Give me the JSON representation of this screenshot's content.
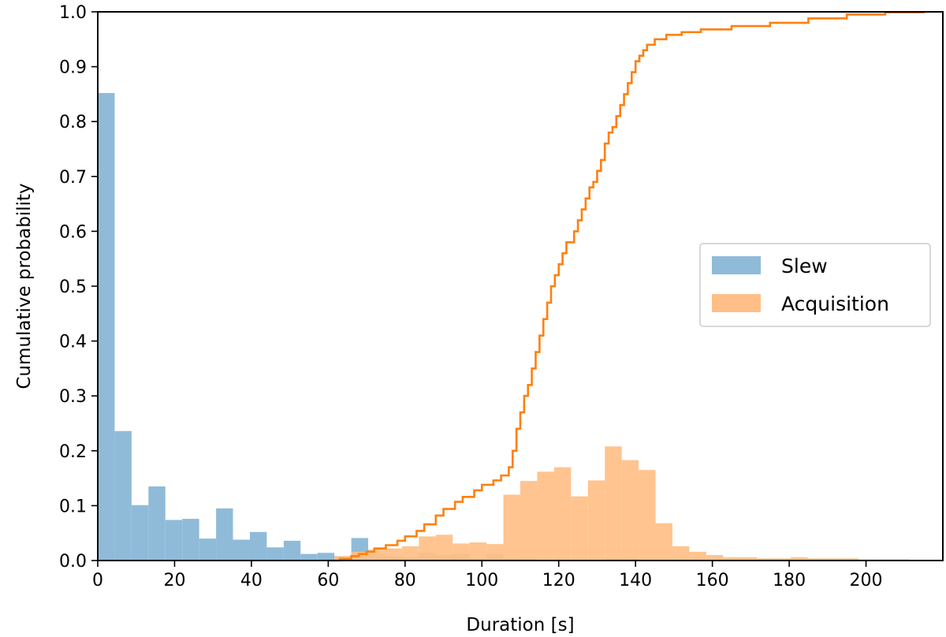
{
  "chart_data": {
    "type": "bar",
    "title": "",
    "xlabel": "Duration [s]",
    "ylabel": "Cumulative probability",
    "xlim": [
      0,
      220
    ],
    "ylim": [
      0,
      1.0
    ],
    "xticks": [
      "0",
      "20",
      "40",
      "60",
      "80",
      "100",
      "120",
      "140",
      "160",
      "180",
      "200"
    ],
    "yticks": [
      "0.0",
      "0.1",
      "0.2",
      "0.3",
      "0.4",
      "0.5",
      "0.6",
      "0.7",
      "0.8",
      "0.9",
      "1.0"
    ],
    "grid": false,
    "legend_position": "center-right",
    "legend": [
      "Slew",
      "Acquisition"
    ],
    "colors": {
      "slew": "#8fbbd9",
      "acquisition": "#ffbf86",
      "acquisition_cdf": "#ff7f0e",
      "overlap": "#c9b29a"
    },
    "series": [
      {
        "name": "Slew",
        "kind": "histogram",
        "bin_width": 4.4,
        "bins": [
          {
            "x0": 0.0,
            "value": 0.852
          },
          {
            "x0": 4.4,
            "value": 0.236
          },
          {
            "x0": 8.8,
            "value": 0.101
          },
          {
            "x0": 13.2,
            "value": 0.135
          },
          {
            "x0": 17.6,
            "value": 0.074
          },
          {
            "x0": 22.0,
            "value": 0.076
          },
          {
            "x0": 26.4,
            "value": 0.04
          },
          {
            "x0": 30.8,
            "value": 0.095
          },
          {
            "x0": 35.2,
            "value": 0.038
          },
          {
            "x0": 39.6,
            "value": 0.052
          },
          {
            "x0": 44.0,
            "value": 0.024
          },
          {
            "x0": 48.4,
            "value": 0.036
          },
          {
            "x0": 52.8,
            "value": 0.012
          },
          {
            "x0": 57.2,
            "value": 0.014
          },
          {
            "x0": 61.6,
            "value": 0.008
          },
          {
            "x0": 66.0,
            "value": 0.041
          },
          {
            "x0": 70.4,
            "value": 0.012
          },
          {
            "x0": 74.8,
            "value": 0.008
          },
          {
            "x0": 79.2,
            "value": 0.006
          },
          {
            "x0": 83.6,
            "value": 0.014
          },
          {
            "x0": 88.0,
            "value": 0.01
          },
          {
            "x0": 92.4,
            "value": 0.012
          },
          {
            "x0": 96.8,
            "value": 0.004
          },
          {
            "x0": 101.2,
            "value": 0.012
          },
          {
            "x0": 105.6,
            "value": 0.004
          },
          {
            "x0": 110.0,
            "value": 0.003
          },
          {
            "x0": 132.0,
            "value": 0.004
          },
          {
            "x0": 136.4,
            "value": 0.003
          },
          {
            "x0": 193.6,
            "value": 0.002
          }
        ]
      },
      {
        "name": "Acquisition",
        "kind": "histogram",
        "bin_width": 4.4,
        "bins": [
          {
            "x0": 61.6,
            "value": 0.008
          },
          {
            "x0": 66.0,
            "value": 0.016
          },
          {
            "x0": 70.4,
            "value": 0.02
          },
          {
            "x0": 74.8,
            "value": 0.022
          },
          {
            "x0": 79.2,
            "value": 0.026
          },
          {
            "x0": 83.6,
            "value": 0.044
          },
          {
            "x0": 88.0,
            "value": 0.047
          },
          {
            "x0": 92.4,
            "value": 0.031
          },
          {
            "x0": 96.8,
            "value": 0.033
          },
          {
            "x0": 101.2,
            "value": 0.03
          },
          {
            "x0": 105.6,
            "value": 0.12
          },
          {
            "x0": 110.0,
            "value": 0.145
          },
          {
            "x0": 114.4,
            "value": 0.162
          },
          {
            "x0": 118.8,
            "value": 0.17
          },
          {
            "x0": 123.2,
            "value": 0.117
          },
          {
            "x0": 127.6,
            "value": 0.146
          },
          {
            "x0": 132.0,
            "value": 0.208
          },
          {
            "x0": 136.4,
            "value": 0.183
          },
          {
            "x0": 140.8,
            "value": 0.165
          },
          {
            "x0": 145.2,
            "value": 0.068
          },
          {
            "x0": 149.6,
            "value": 0.026
          },
          {
            "x0": 154.0,
            "value": 0.016
          },
          {
            "x0": 158.4,
            "value": 0.01
          },
          {
            "x0": 162.8,
            "value": 0.006
          },
          {
            "x0": 167.2,
            "value": 0.006
          },
          {
            "x0": 171.6,
            "value": 0.004
          },
          {
            "x0": 176.0,
            "value": 0.004
          },
          {
            "x0": 180.4,
            "value": 0.006
          },
          {
            "x0": 184.8,
            "value": 0.004
          },
          {
            "x0": 189.2,
            "value": 0.004
          },
          {
            "x0": 193.6,
            "value": 0.004
          },
          {
            "x0": 198.0,
            "value": 0.002
          },
          {
            "x0": 202.4,
            "value": 0.002
          },
          {
            "x0": 206.8,
            "value": 0.002
          }
        ]
      },
      {
        "name": "Acquisition",
        "kind": "cumulative-step",
        "points": [
          [
            60,
            0.0
          ],
          [
            63,
            0.003
          ],
          [
            66,
            0.008
          ],
          [
            68,
            0.012
          ],
          [
            70,
            0.016
          ],
          [
            72,
            0.022
          ],
          [
            75,
            0.028
          ],
          [
            78,
            0.036
          ],
          [
            80,
            0.044
          ],
          [
            83,
            0.054
          ],
          [
            85,
            0.066
          ],
          [
            88,
            0.082
          ],
          [
            90,
            0.094
          ],
          [
            93,
            0.107
          ],
          [
            95,
            0.116
          ],
          [
            98,
            0.128
          ],
          [
            100,
            0.138
          ],
          [
            103,
            0.146
          ],
          [
            105,
            0.155
          ],
          [
            107,
            0.17
          ],
          [
            108,
            0.2
          ],
          [
            109,
            0.24
          ],
          [
            110,
            0.27
          ],
          [
            111,
            0.3
          ],
          [
            112,
            0.32
          ],
          [
            113,
            0.35
          ],
          [
            114,
            0.38
          ],
          [
            115,
            0.41
          ],
          [
            116,
            0.44
          ],
          [
            117,
            0.47
          ],
          [
            118,
            0.5
          ],
          [
            119,
            0.52
          ],
          [
            120,
            0.54
          ],
          [
            121,
            0.56
          ],
          [
            122,
            0.58
          ],
          [
            124,
            0.6
          ],
          [
            125,
            0.62
          ],
          [
            126,
            0.64
          ],
          [
            127,
            0.66
          ],
          [
            128,
            0.68
          ],
          [
            129,
            0.69
          ],
          [
            130,
            0.71
          ],
          [
            131,
            0.73
          ],
          [
            132,
            0.76
          ],
          [
            133,
            0.78
          ],
          [
            134,
            0.79
          ],
          [
            135,
            0.81
          ],
          [
            136,
            0.83
          ],
          [
            137,
            0.85
          ],
          [
            138,
            0.87
          ],
          [
            139,
            0.89
          ],
          [
            140,
            0.91
          ],
          [
            141,
            0.92
          ],
          [
            142,
            0.93
          ],
          [
            143,
            0.94
          ],
          [
            145,
            0.95
          ],
          [
            148,
            0.958
          ],
          [
            152,
            0.963
          ],
          [
            157,
            0.968
          ],
          [
            165,
            0.974
          ],
          [
            175,
            0.98
          ],
          [
            185,
            0.988
          ],
          [
            195,
            0.995
          ],
          [
            205,
            0.999
          ],
          [
            215,
            1.0
          ]
        ]
      }
    ]
  }
}
